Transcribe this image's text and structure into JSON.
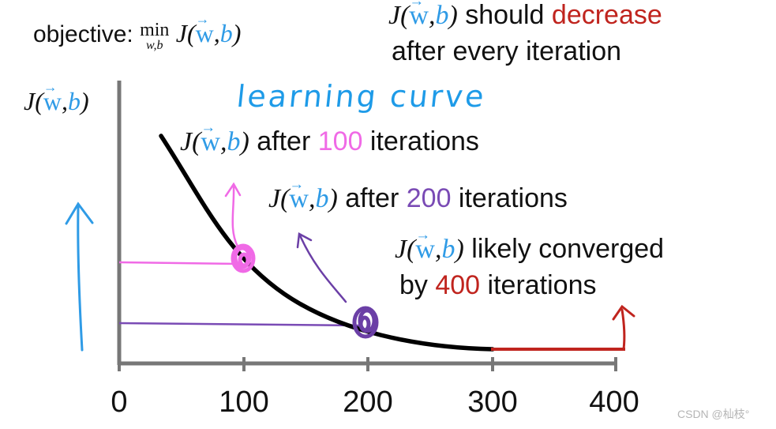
{
  "objective": {
    "label": "objective: ",
    "min": "min",
    "min_sub": "w,b",
    "func": "J(",
    "w": "w",
    "comma": ",",
    "b": "b",
    "close": ")"
  },
  "note": {
    "func": "J(",
    "w": "w",
    "comma": ",",
    "b": "b",
    "close": ")",
    "text1": " should ",
    "decrease": "decrease",
    "text2": "after every iteration"
  },
  "axis_label": {
    "func": "J(",
    "w": "w",
    "comma": ",",
    "b": "b",
    "close": ")"
  },
  "handwritten_title": "learning curve",
  "annotations": {
    "a100": {
      "func": "J(",
      "w": "w",
      "comma": ",",
      "b": "b",
      "close": ")",
      "text": " after ",
      "num": "100",
      "tail": " iterations"
    },
    "a200": {
      "func": "J(",
      "w": "w",
      "comma": ",",
      "b": "b",
      "close": ")",
      "text": " after ",
      "num": "200",
      "tail": " iterations"
    },
    "a400": {
      "func": "J(",
      "w": "w",
      "comma": ",",
      "b": "b",
      "close": ")",
      "text": " likely converged",
      "line2": "by ",
      "num": "400",
      "tail": " iterations"
    }
  },
  "x_ticks": [
    "0",
    "100",
    "200",
    "300",
    "400"
  ],
  "watermark": "CSDN @杣枝°",
  "colors": {
    "pink": "#f06ae6",
    "purple": "#7a4bb5",
    "red": "#c0241e",
    "blue": "#2f9be6"
  }
}
